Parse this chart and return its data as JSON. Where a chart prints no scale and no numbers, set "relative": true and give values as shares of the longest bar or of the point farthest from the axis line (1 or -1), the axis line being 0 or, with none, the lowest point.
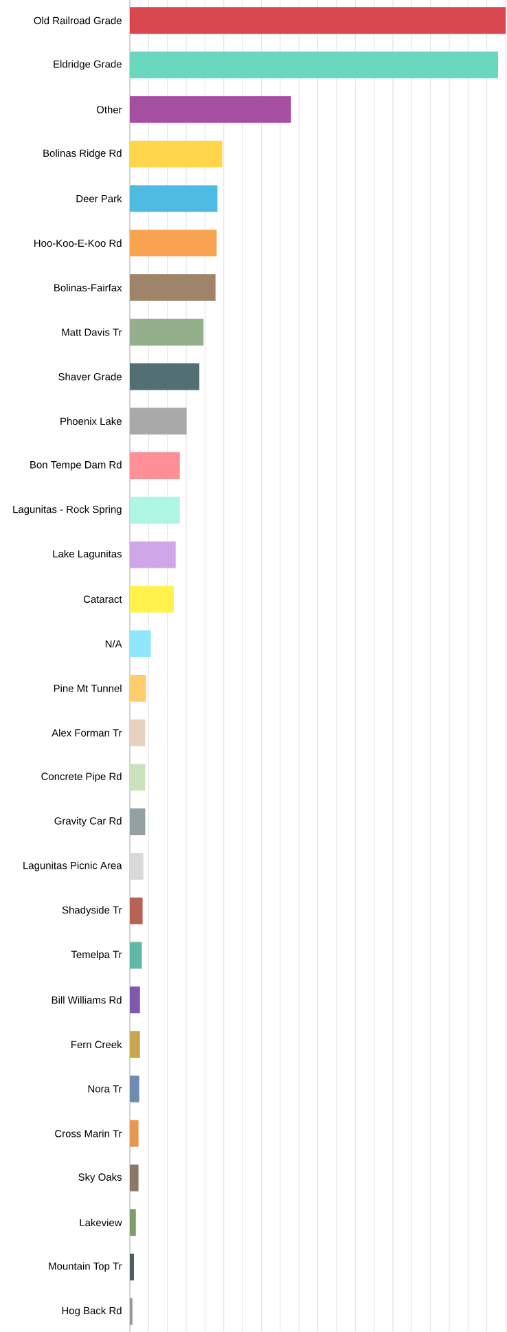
{
  "chart_data": {
    "type": "bar",
    "orientation": "horizontal",
    "relative": true,
    "grid": "x",
    "tick_labels": "y",
    "categories": [
      "Old Railroad Grade",
      "Eldridge Grade",
      "Other",
      "Bolinas Ridge Rd",
      "Deer Park",
      "Hoo-Koo-E-Koo Rd",
      "Bolinas-Fairfax",
      "Matt Davis Tr",
      "Shaver Grade",
      "Phoenix Lake",
      "Bon Tempe Dam Rd",
      "Lagunitas - Rock Spring",
      "Lake Lagunitas",
      "Cataract",
      "N/A",
      "Pine Mt Tunnel",
      "Alex Forman Tr",
      "Concrete Pipe Rd",
      "Gravity Car Rd",
      "Lagunitas Picnic Area",
      "Shadyside Tr",
      "Temelpa Tr",
      "Bill Williams Rd",
      "Fern Creek",
      "Nora Tr",
      "Cross Marin Tr",
      "Sky Oaks",
      "Lakeview",
      "Mountain Top Tr",
      "Hog Back Rd"
    ],
    "values": [
      1.0,
      0.98,
      0.429,
      0.246,
      0.233,
      0.231,
      0.228,
      0.196,
      0.185,
      0.151,
      0.133,
      0.133,
      0.122,
      0.117,
      0.056,
      0.043,
      0.041,
      0.041,
      0.041,
      0.036,
      0.034,
      0.032,
      0.027,
      0.027,
      0.025,
      0.023,
      0.023,
      0.016,
      0.011,
      0.007
    ],
    "colors": [
      "#d9474e",
      "#6ad8bf",
      "#a64ea0",
      "#ffd54a",
      "#4fbbe3",
      "#f7a350",
      "#a08469",
      "#93b08a",
      "#526f74",
      "#a9a9a9",
      "#ff8f96",
      "#adf5e4",
      "#cfa7e8",
      "#fff24a",
      "#90e6fa",
      "#ffcd6d",
      "#e6d2bf",
      "#cbe3bd",
      "#95a0a4",
      "#d9d9d9",
      "#b86257",
      "#62b8a7",
      "#8058ae",
      "#c9a54f",
      "#6f8bb3",
      "#e59752",
      "#8b7866",
      "#7e9e6e",
      "#4f5e60",
      "#999999"
    ]
  }
}
